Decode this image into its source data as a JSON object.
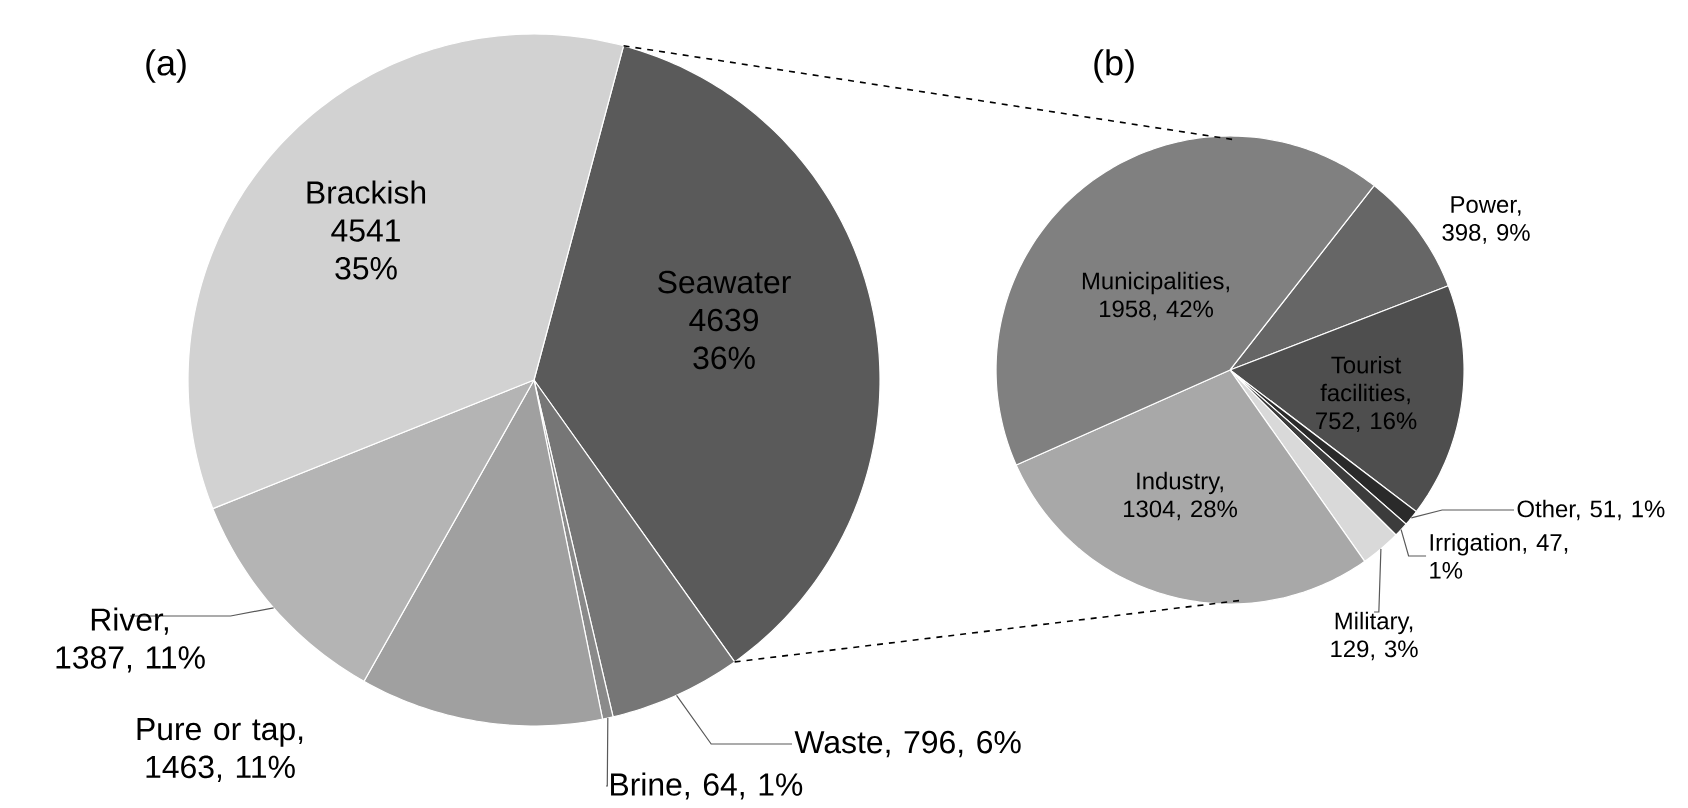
{
  "chart_data": [
    {
      "type": "pie",
      "title": "(a)",
      "categories": [
        "Seawater 4639 36%",
        "Waste, 796, 6%",
        "Brine, 64, 1%",
        "Pure or tap, 1463, 11%",
        "River, 1387, 11%",
        "Brackish 4541 35%"
      ],
      "values": [
        4639,
        796,
        64,
        1463,
        1387,
        4541
      ],
      "colors": [
        "#5a5a5a",
        "#767676",
        "#8a8a8a",
        "#a0a0a0",
        "#b4b4b4",
        "#d2d2d2"
      ]
    },
    {
      "type": "pie",
      "title": "(b)",
      "categories": [
        "Power, 398, 9%",
        "Tourist facilities, 752, 16%",
        "Other, 51, 1%",
        "Irrigation, 47, 1%",
        "Military, 129, 3%",
        "Industry, 1304, 28%",
        "Municipalities, 1958, 42%"
      ],
      "values": [
        398,
        752,
        51,
        47,
        129,
        1304,
        1958
      ],
      "colors": [
        "#666666",
        "#4e4e4e",
        "#2a2a2a",
        "#3c3c3c",
        "#d9d9d9",
        "#a8a8a8",
        "#808080"
      ]
    }
  ]
}
